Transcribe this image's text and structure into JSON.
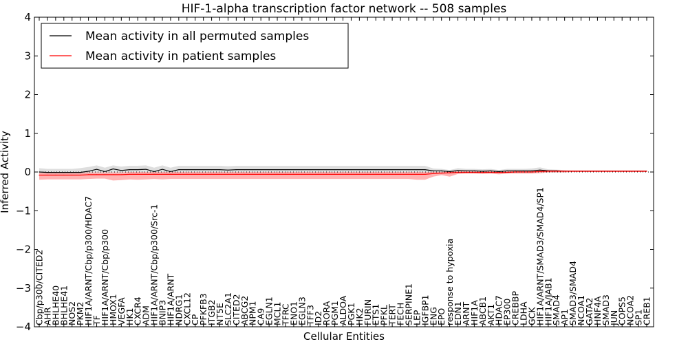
{
  "chart_data": {
    "type": "line",
    "title": "HIF-1-alpha transcription factor network -- 508 samples",
    "xlabel": "Cellular Entities",
    "ylabel": "Inferred Activity",
    "ylim": [
      -4,
      4
    ],
    "yticks": [
      4,
      3,
      2,
      1,
      0,
      -1,
      -2,
      -3,
      -4
    ],
    "ytick_labels": [
      "4",
      "3",
      "2",
      "1",
      "0",
      "−1",
      "−2",
      "−3",
      "−4"
    ],
    "grid": false,
    "zero_line": "dotted",
    "legend_position": "top-left",
    "categories": [
      "Cbp/p300/CITED2",
      "AHR",
      "BHLHE40",
      "BHLHE41",
      "NOS2",
      "PKM2",
      "HIF1A/ARNT/Cbp/p300/HDAC7",
      "TF",
      "HIF1A/ARNT/Cbp/p300",
      "HMOX1",
      "VEGFA",
      "HK1",
      "CXCR4",
      "ADM",
      "HIF1A/ARNT/Cbp/p300/Src-1",
      "BNIP3",
      "HIF1A/ARNT",
      "NDRG1",
      "CXCL12",
      "CP",
      "PFKFB3",
      "ITGB2",
      "NT5E",
      "SLC2A1",
      "CITED2",
      "ABCG2",
      "NPM1",
      "CA9",
      "EGLN1",
      "MCL1",
      "TFRC",
      "ENO1",
      "EGLN3",
      "TFF3",
      "ID2",
      "RORA",
      "PGM1",
      "ALDOA",
      "PGK1",
      "HK2",
      "FURIN",
      "ETS1",
      "PFKL",
      "TERT",
      "FECH",
      "SERPINE1",
      "LEP",
      "IGFBP1",
      "ENG",
      "EPO",
      "response to hypoxia",
      "EDN1",
      "ARNT",
      "HIF1A",
      "ABCB1",
      "AKT1",
      "HDAC7",
      "EP300",
      "CREBBP",
      "LDHA",
      "GCK",
      "HIF1A/ARNT/SMAD3/SMAD4/SP1",
      "HIF1A/JAB1",
      "SMAD4",
      "AP1",
      "SMAD3/SMAD4",
      "NCOA1",
      "GATA2",
      "HNF4A",
      "SMAD3",
      "JUN",
      "COPS5",
      "NCOA2",
      "SP1",
      "CREB1"
    ],
    "series": [
      {
        "name": "Mean activity in all permuted samples",
        "color": "#000000",
        "values": [
          0,
          -0.01,
          -0.01,
          -0.01,
          -0.01,
          -0.01,
          0.02,
          0.07,
          0.01,
          0.08,
          0.04,
          0.06,
          0.06,
          0.07,
          0.01,
          0.07,
          0.01,
          0.06,
          0.06,
          0.06,
          0.06,
          0.06,
          0.06,
          0.05,
          0.06,
          0.06,
          0.06,
          0.06,
          0.06,
          0.06,
          0.06,
          0.06,
          0.06,
          0.06,
          0.06,
          0.06,
          0.06,
          0.06,
          0.06,
          0.06,
          0.06,
          0.06,
          0.06,
          0.06,
          0.06,
          0.06,
          0.06,
          0.06,
          0.03,
          0.03,
          0.01,
          0.04,
          0.03,
          0.03,
          0.02,
          0.03,
          0.01,
          0.03,
          0.03,
          0.03,
          0.03,
          0.05,
          0.03,
          0.03,
          0.02,
          0.02,
          0.02,
          0.02,
          0.02,
          0.02,
          0.02,
          0.02,
          0.02,
          0.02,
          0.02
        ],
        "upper": [
          0.1,
          0.08,
          0.08,
          0.08,
          0.08,
          0.1,
          0.13,
          0.17,
          0.11,
          0.17,
          0.14,
          0.16,
          0.16,
          0.17,
          0.11,
          0.17,
          0.11,
          0.16,
          0.16,
          0.16,
          0.16,
          0.16,
          0.16,
          0.15,
          0.16,
          0.16,
          0.16,
          0.16,
          0.16,
          0.16,
          0.16,
          0.16,
          0.16,
          0.16,
          0.16,
          0.16,
          0.16,
          0.16,
          0.16,
          0.16,
          0.16,
          0.16,
          0.16,
          0.16,
          0.16,
          0.16,
          0.16,
          0.16,
          0.09,
          0.08,
          0.05,
          0.1,
          0.08,
          0.08,
          0.07,
          0.08,
          0.05,
          0.08,
          0.08,
          0.08,
          0.09,
          0.12,
          0.07,
          0.06,
          0.05,
          0.04,
          0.04,
          0.04,
          0.04,
          0.04,
          0.04,
          0.04,
          0.04,
          0.04,
          0.04
        ],
        "lower": [
          -0.05,
          -0.06,
          -0.06,
          -0.06,
          -0.06,
          -0.06,
          -0.05,
          -0.03,
          -0.05,
          -0.02,
          -0.04,
          -0.03,
          -0.03,
          -0.02,
          -0.05,
          -0.02,
          -0.05,
          -0.03,
          -0.03,
          -0.03,
          -0.03,
          -0.03,
          -0.03,
          -0.03,
          -0.03,
          -0.03,
          -0.03,
          -0.03,
          -0.03,
          -0.03,
          -0.03,
          -0.03,
          -0.03,
          -0.03,
          -0.03,
          -0.03,
          -0.03,
          -0.03,
          -0.03,
          -0.03,
          -0.03,
          -0.03,
          -0.03,
          -0.03,
          -0.03,
          -0.03,
          -0.03,
          -0.03,
          -0.03,
          -0.03,
          -0.04,
          -0.02,
          -0.02,
          -0.02,
          -0.02,
          -0.02,
          -0.03,
          -0.01,
          -0.01,
          -0.01,
          -0.01,
          0,
          -0.01,
          -0.01,
          0,
          0,
          0,
          0,
          0,
          0,
          0,
          0,
          0,
          0,
          0
        ]
      },
      {
        "name": "Mean activity in patient samples",
        "color": "#ff0000",
        "fill": "#ff9999",
        "values": [
          -0.08,
          -0.08,
          -0.08,
          -0.08,
          -0.08,
          -0.08,
          -0.07,
          -0.07,
          -0.07,
          -0.07,
          -0.07,
          -0.06,
          -0.06,
          -0.06,
          -0.06,
          -0.06,
          -0.06,
          -0.06,
          -0.06,
          -0.06,
          -0.06,
          -0.06,
          -0.06,
          -0.06,
          -0.06,
          -0.06,
          -0.06,
          -0.06,
          -0.06,
          -0.06,
          -0.06,
          -0.06,
          -0.06,
          -0.06,
          -0.06,
          -0.06,
          -0.06,
          -0.06,
          -0.06,
          -0.06,
          -0.06,
          -0.06,
          -0.06,
          -0.06,
          -0.06,
          -0.06,
          -0.06,
          -0.06,
          -0.04,
          -0.03,
          -0.02,
          -0.01,
          -0.01,
          -0.01,
          -0.01,
          -0.01,
          -0.01,
          -0.01,
          0,
          0,
          0,
          0.01,
          0.02,
          0.02,
          0.02,
          0.02,
          0.02,
          0.02,
          0.02,
          0.02,
          0.02,
          0.02,
          0.02,
          0.02,
          0.02
        ],
        "upper": [
          -0.02,
          -0.02,
          -0.02,
          -0.02,
          -0.02,
          -0.02,
          -0.01,
          -0.01,
          -0.01,
          -0.01,
          -0.01,
          0,
          0,
          0,
          0,
          0,
          0,
          0,
          0,
          0,
          0,
          0,
          0,
          0,
          0,
          0,
          0,
          0,
          0,
          0,
          0,
          0,
          0,
          0,
          0,
          0,
          0,
          0,
          0,
          0,
          0,
          0,
          0,
          0,
          0,
          0,
          0,
          0,
          0,
          0,
          0.01,
          0.02,
          0.02,
          0.02,
          0.02,
          0.02,
          0.02,
          0.02,
          0.02,
          0.02,
          0.03,
          0.04,
          0.05,
          0.05,
          0.04,
          0.04,
          0.04,
          0.04,
          0.04,
          0.04,
          0.04,
          0.04,
          0.04,
          0.04,
          0.04
        ],
        "lower": [
          -0.2,
          -0.19,
          -0.19,
          -0.19,
          -0.19,
          -0.19,
          -0.18,
          -0.17,
          -0.17,
          -0.22,
          -0.21,
          -0.19,
          -0.2,
          -0.19,
          -0.18,
          -0.19,
          -0.18,
          -0.18,
          -0.18,
          -0.18,
          -0.18,
          -0.18,
          -0.18,
          -0.18,
          -0.18,
          -0.18,
          -0.18,
          -0.18,
          -0.18,
          -0.18,
          -0.18,
          -0.18,
          -0.18,
          -0.18,
          -0.18,
          -0.18,
          -0.18,
          -0.18,
          -0.18,
          -0.18,
          -0.18,
          -0.18,
          -0.18,
          -0.18,
          -0.18,
          -0.18,
          -0.2,
          -0.2,
          -0.12,
          -0.08,
          -0.12,
          -0.05,
          -0.04,
          -0.04,
          -0.05,
          -0.04,
          -0.06,
          -0.04,
          -0.04,
          -0.04,
          -0.04,
          -0.03,
          -0.01,
          -0.01,
          -0.01,
          0,
          0,
          0,
          0,
          0,
          0,
          0,
          0,
          0,
          0
        ]
      }
    ]
  }
}
